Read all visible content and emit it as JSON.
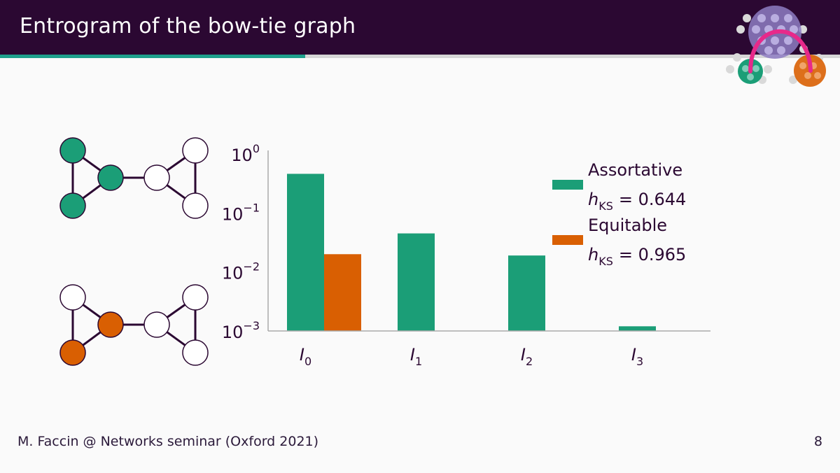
{
  "slide": {
    "title": "Entrogram of the bow-tie graph",
    "footer": "M. Faccin @ Networks seminar (Oxford 2021)",
    "page_number": "8",
    "progress": 0.363
  },
  "colors": {
    "header_bg": "#2b0832",
    "progress_fill": "#1fa08c",
    "assortative": "#1b9e77",
    "equitable": "#d95f02",
    "node_outline": "#2b0832",
    "logo_purple": "#8e7cc3",
    "logo_pink": "#e7298a"
  },
  "graphs": {
    "assortative": {
      "name": "bow-tie-assortative",
      "highlight": [
        0,
        1,
        2
      ]
    },
    "equitable": {
      "name": "bow-tie-equitable",
      "highlight": [
        1,
        2
      ]
    }
  },
  "chart_data": {
    "type": "bar",
    "yscale": "log",
    "ylim": [
      0.001,
      1
    ],
    "yticks": [
      {
        "value": 1,
        "base": "10",
        "exp": "0"
      },
      {
        "value": 0.1,
        "base": "10",
        "exp": "−1"
      },
      {
        "value": 0.01,
        "base": "10",
        "exp": "−2"
      },
      {
        "value": 0.001,
        "base": "10",
        "exp": "−3"
      }
    ],
    "categories": [
      {
        "base": "I",
        "sub": "0"
      },
      {
        "base": "I",
        "sub": "1"
      },
      {
        "base": "I",
        "sub": "2"
      },
      {
        "base": "I",
        "sub": "3"
      }
    ],
    "series": [
      {
        "name": "Assortative",
        "h_label": "h",
        "h_sub": "KS",
        "h_value": "= 0.644",
        "color": "#1b9e77",
        "values": [
          0.46,
          0.045,
          0.019,
          0.0012
        ]
      },
      {
        "name": "Equitable",
        "h_label": "h",
        "h_sub": "KS",
        "h_value": "= 0.965",
        "color": "#d95f02",
        "values": [
          0.02,
          null,
          null,
          null
        ]
      }
    ],
    "legend_position": "top-right",
    "grid": false
  }
}
